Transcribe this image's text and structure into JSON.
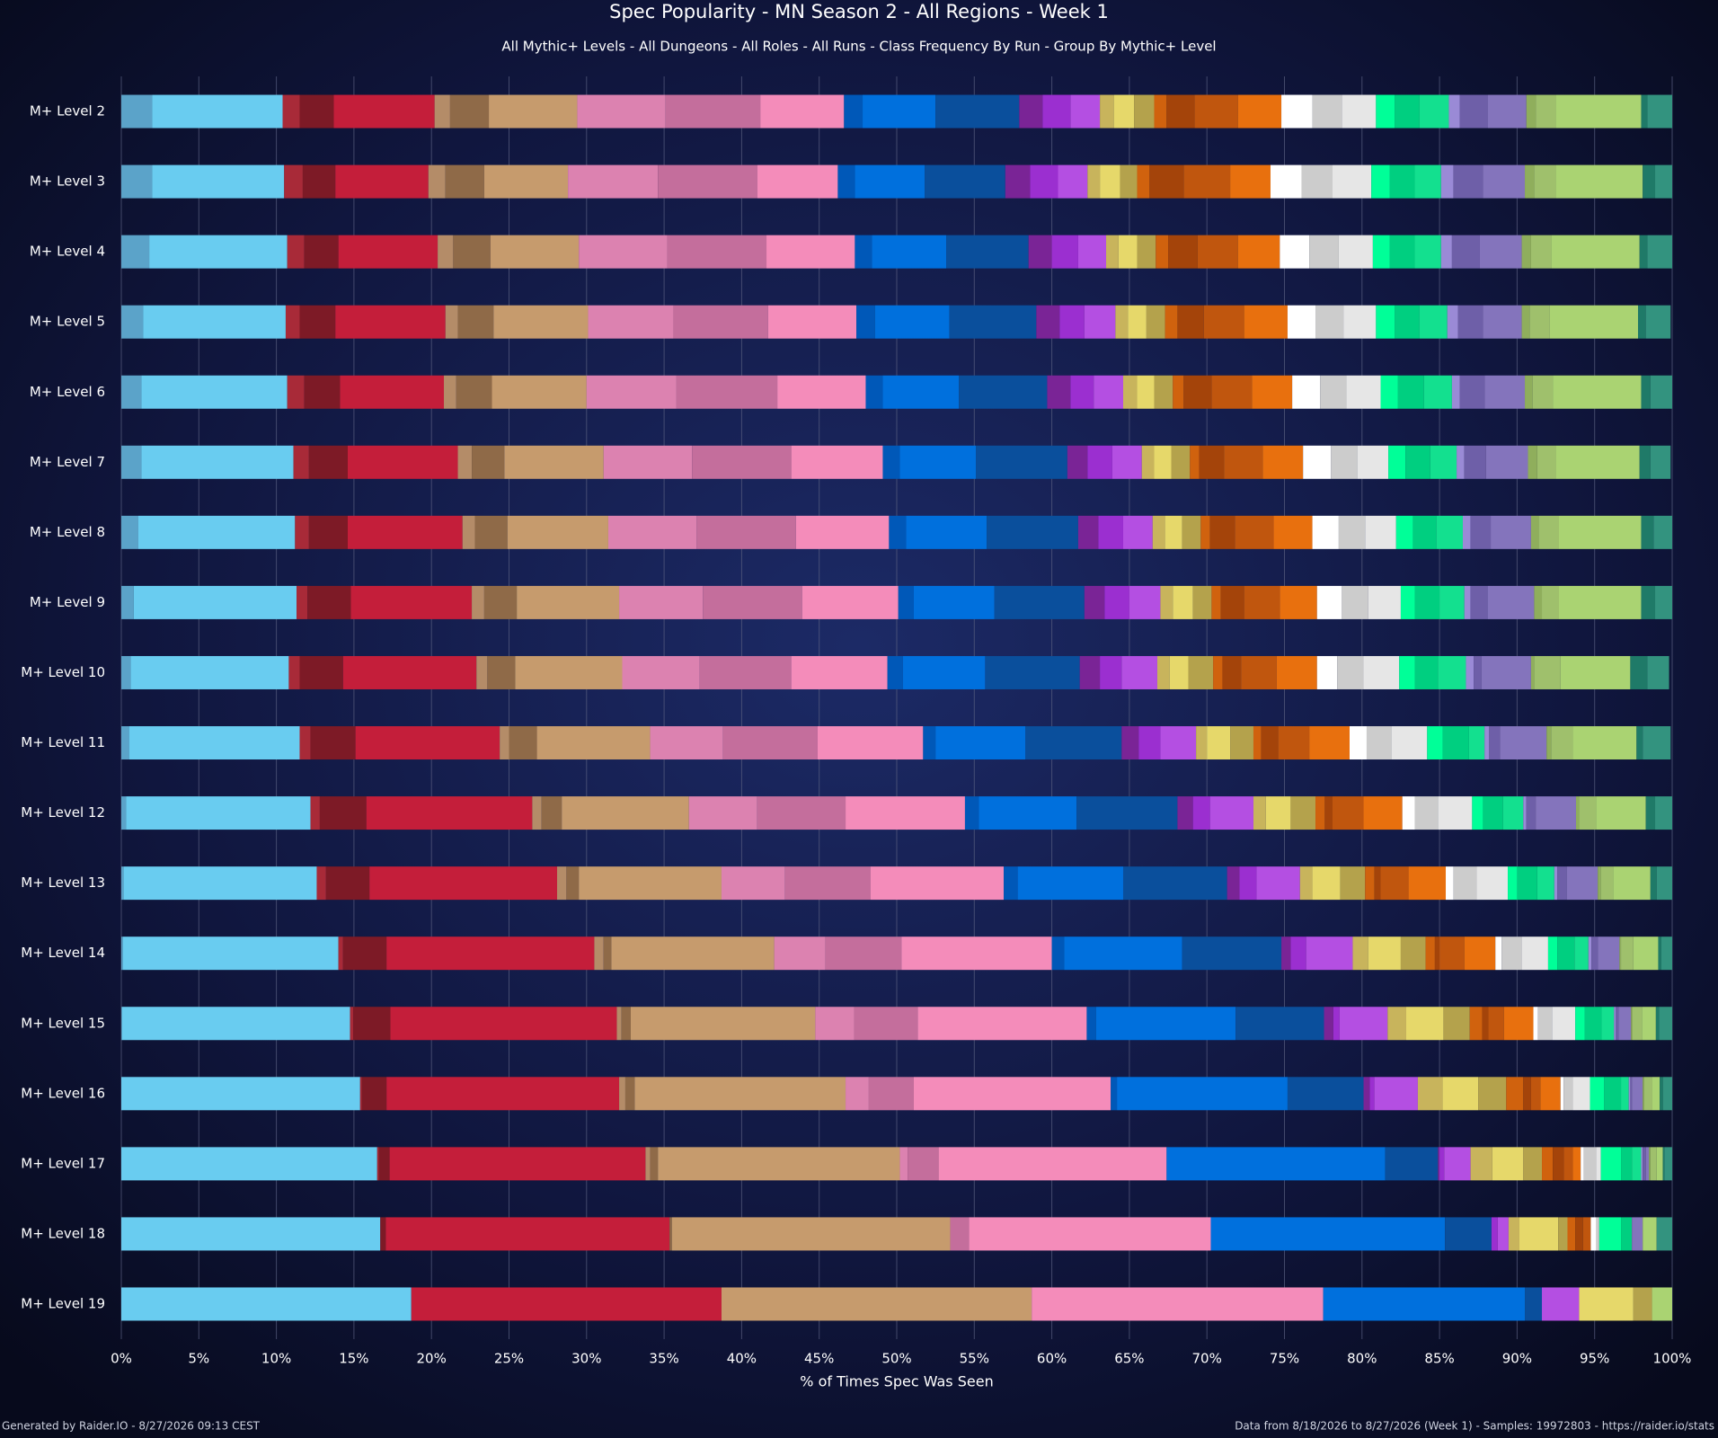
{
  "chart_data": {
    "type": "bar",
    "orientation": "horizontal",
    "stacked": true,
    "title": "Spec Popularity - MN Season 2 - All Regions - Week 1",
    "subtitle": "All Mythic+ Levels - All Dungeons - All Roles - All Runs - Class Frequency By Run - Group By Mythic+ Level",
    "x_label": "% of Times Spec Was Seen",
    "footer_left": "Generated by Raider.IO - 8/27/2026 09:13 CEST",
    "footer_right": "Data from 8/18/2026 to 8/27/2026 (Week 1) - Samples: 19972803 - https://raider.io/stats",
    "grid": true,
    "xlim": [
      0,
      100
    ],
    "xticks": [
      {
        "value": 0,
        "label": "0%"
      },
      {
        "value": 5,
        "label": "5%"
      },
      {
        "value": 10,
        "label": "10%"
      },
      {
        "value": 15,
        "label": "15%"
      },
      {
        "value": 20,
        "label": "20%"
      },
      {
        "value": 25,
        "label": "25%"
      },
      {
        "value": 30,
        "label": "30%"
      },
      {
        "value": 35,
        "label": "35%"
      },
      {
        "value": 40,
        "label": "40%"
      },
      {
        "value": 45,
        "label": "45%"
      },
      {
        "value": 50,
        "label": "50%"
      },
      {
        "value": 55,
        "label": "55%"
      },
      {
        "value": 60,
        "label": "60%"
      },
      {
        "value": 65,
        "label": "65%"
      },
      {
        "value": 70,
        "label": "70%"
      },
      {
        "value": 75,
        "label": "75%"
      },
      {
        "value": 80,
        "label": "80%"
      },
      {
        "value": 85,
        "label": "85%"
      },
      {
        "value": 90,
        "label": "90%"
      },
      {
        "value": 95,
        "label": "95%"
      },
      {
        "value": 100,
        "label": "100%"
      }
    ],
    "categories": [
      "M+ Level 2",
      "M+ Level 3",
      "M+ Level 4",
      "M+ Level 5",
      "M+ Level 6",
      "M+ Level 7",
      "M+ Level 8",
      "M+ Level 9",
      "M+ Level 10",
      "M+ Level 11",
      "M+ Level 12",
      "M+ Level 13",
      "M+ Level 14",
      "M+ Level 15",
      "M+ Level 16",
      "M+ Level 17",
      "M+ Level 18",
      "M+ Level 19"
    ],
    "series": [
      {
        "color": "#5ba3c9",
        "values": [
          2,
          2,
          1.8,
          1.4,
          1.3,
          1.3,
          1.1,
          0.8,
          0.6,
          0.5,
          0.3,
          0.15,
          0.1,
          0.05,
          0,
          0,
          0,
          0
        ]
      },
      {
        "color": "#69ccf0",
        "values": [
          8.4,
          8.5,
          8.9,
          9.2,
          9.4,
          9.8,
          10.1,
          10.5,
          10.2,
          11,
          11.9,
          12.45,
          13.9,
          14.7,
          15.4,
          16.5,
          16.7,
          18.7
        ]
      },
      {
        "color": "#a82a38",
        "values": [
          1.1,
          1.2,
          1.1,
          0.9,
          1.1,
          1,
          0.9,
          0.7,
          0.7,
          0.7,
          0.6,
          0.6,
          0.3,
          0.2,
          0.1,
          0.1,
          0,
          0
        ]
      },
      {
        "color": "#7d1a26",
        "values": [
          2.2,
          2.1,
          2.2,
          2.3,
          2.3,
          2.5,
          2.5,
          2.8,
          2.8,
          2.9,
          3,
          2.8,
          2.8,
          2.4,
          1.6,
          0.7,
          0.35,
          0
        ]
      },
      {
        "color": "#c41e3a",
        "values": [
          6.5,
          6,
          6.4,
          7.1,
          6.7,
          7.1,
          7.4,
          7.8,
          8.6,
          9.3,
          10.7,
          12.1,
          13.4,
          14.6,
          15,
          16.5,
          18.3,
          20
        ]
      },
      {
        "color": "#b48c68",
        "values": [
          1,
          1.1,
          1,
          0.8,
          0.8,
          0.9,
          0.8,
          0.8,
          0.7,
          0.6,
          0.6,
          0.6,
          0.6,
          0.3,
          0.4,
          0.3,
          0,
          0
        ]
      },
      {
        "color": "#8f6a48",
        "values": [
          2.5,
          2.5,
          2.4,
          2.3,
          2.3,
          2.1,
          2.1,
          2.1,
          1.8,
          1.8,
          1.3,
          0.8,
          0.5,
          0.6,
          0.6,
          0.5,
          0.15,
          0
        ]
      },
      {
        "color": "#c69b6d",
        "values": [
          5.7,
          5.4,
          5.7,
          6.1,
          6.1,
          6.4,
          6.5,
          6.6,
          6.9,
          7.3,
          8.2,
          9.2,
          10.5,
          11.9,
          13.6,
          15.6,
          17.95,
          20
        ]
      },
      {
        "color": "#dc82b0",
        "values": [
          5.7,
          5.8,
          5.7,
          5.5,
          5.8,
          5.7,
          5.7,
          5.4,
          5,
          4.7,
          4.4,
          4.1,
          3.3,
          2.5,
          1.5,
          0.5,
          0,
          0
        ]
      },
      {
        "color": "#c46e9c",
        "values": [
          6.1,
          6.4,
          6.4,
          6.1,
          6.5,
          6.4,
          6.4,
          6.4,
          5.9,
          6.1,
          5.7,
          5.5,
          4.9,
          4.1,
          2.9,
          2,
          1.2,
          0
        ]
      },
      {
        "color": "#f48cba",
        "values": [
          5.4,
          5.2,
          5.7,
          5.7,
          5.7,
          5.9,
          6,
          6.2,
          6.2,
          6.8,
          7.7,
          8.6,
          9.7,
          10.9,
          12.7,
          14.7,
          15.6,
          18.8
        ]
      },
      {
        "color": "#0058b8",
        "values": [
          1.2,
          1.1,
          1.1,
          1.2,
          1.1,
          1.1,
          1.1,
          1,
          1,
          0.8,
          0.9,
          0.9,
          0.8,
          0.6,
          0.4,
          0,
          0,
          0
        ]
      },
      {
        "color": "#0070dd",
        "values": [
          4.7,
          4.5,
          4.8,
          4.8,
          4.9,
          4.9,
          5.2,
          5.2,
          5.3,
          5.8,
          6.3,
          6.8,
          7.6,
          9,
          11,
          14.1,
          15.1,
          13
        ]
      },
      {
        "color": "#0a4f9c",
        "values": [
          5.4,
          5.2,
          5.3,
          5.6,
          5.7,
          5.9,
          5.9,
          5.8,
          6.1,
          6.2,
          6.5,
          6.7,
          6.4,
          5.7,
          4.9,
          3.4,
          3,
          1.1
        ]
      },
      {
        "color": "#7a2496",
        "values": [
          1.5,
          1.6,
          1.5,
          1.5,
          1.5,
          1.3,
          1.3,
          1.3,
          1.3,
          1.1,
          1,
          0.8,
          0.6,
          0.6,
          0.4,
          0.1,
          0,
          0
        ]
      },
      {
        "color": "#9b2fd0",
        "values": [
          1.8,
          1.8,
          1.7,
          1.6,
          1.5,
          1.6,
          1.6,
          1.6,
          1.4,
          1.4,
          1.1,
          1.1,
          1,
          0.4,
          0.3,
          0.3,
          0.4,
          0
        ]
      },
      {
        "color": "#b44fe2",
        "values": [
          1.9,
          1.9,
          1.8,
          2,
          1.9,
          1.9,
          1.9,
          2,
          2.3,
          2.3,
          2.8,
          2.8,
          3,
          3.1,
          2.8,
          1.7,
          0.7,
          2.4
        ]
      },
      {
        "color": "#c8b45c",
        "values": [
          0.9,
          0.8,
          0.8,
          0.8,
          0.9,
          0.8,
          0.8,
          0.8,
          0.8,
          0.7,
          0.8,
          0.8,
          1,
          1.2,
          1.6,
          1.4,
          0.7,
          0
        ]
      },
      {
        "color": "#e6d86a",
        "values": [
          1.3,
          1.3,
          1.2,
          1.2,
          1.1,
          1.1,
          1.1,
          1.3,
          1.2,
          1.5,
          1.6,
          1.8,
          2.1,
          2.4,
          2.3,
          2,
          2.5,
          3.5
        ]
      },
      {
        "color": "#b4a24c",
        "values": [
          1.3,
          1.1,
          1.2,
          1.2,
          1.2,
          1.2,
          1.2,
          1.2,
          1.6,
          1.5,
          1.6,
          1.6,
          1.6,
          1.7,
          1.8,
          1.2,
          0.6,
          1.2
        ]
      },
      {
        "color": "#d0620e",
        "values": [
          0.8,
          0.8,
          0.8,
          0.8,
          0.7,
          0.6,
          0.6,
          0.6,
          0.6,
          0.5,
          0.6,
          0.6,
          0.6,
          0.8,
          1.1,
          0.7,
          0.5,
          0
        ]
      },
      {
        "color": "#a4440a",
        "values": [
          1.8,
          2.2,
          1.9,
          1.7,
          1.8,
          1.6,
          1.6,
          1.5,
          1.2,
          1.1,
          0.5,
          0.4,
          0.3,
          0.4,
          0.5,
          0.7,
          0.5,
          0
        ]
      },
      {
        "color": "#c0560e",
        "values": [
          2.8,
          3,
          2.6,
          2.6,
          2.6,
          2.5,
          2.5,
          2.3,
          2.3,
          2,
          2,
          1.8,
          1.6,
          1,
          0.6,
          0.6,
          0.5,
          0
        ]
      },
      {
        "color": "#e8700e",
        "values": [
          2.8,
          2.6,
          2.7,
          2.8,
          2.6,
          2.6,
          2.5,
          2.4,
          2.6,
          2.6,
          2.5,
          2.4,
          2,
          1.9,
          1.3,
          0.5,
          0,
          0
        ]
      },
      {
        "color": "#ffffff",
        "values": [
          2,
          2,
          1.9,
          1.8,
          1.8,
          1.8,
          1.7,
          1.6,
          1.3,
          1.1,
          0.8,
          0.5,
          0.4,
          0.3,
          0.2,
          0.2,
          0.35,
          0
        ]
      },
      {
        "color": "#cccccc",
        "values": [
          1.9,
          2,
          1.9,
          1.8,
          1.7,
          1.7,
          1.7,
          1.7,
          1.7,
          1.6,
          1.5,
          1.5,
          1.3,
          0.9,
          0.6,
          0.8,
          0.2,
          0
        ]
      },
      {
        "color": "#e6e6e6",
        "values": [
          2.2,
          2.5,
          2.2,
          2.1,
          2.2,
          2,
          2,
          2.1,
          2.3,
          2.3,
          2.2,
          2,
          1.7,
          1.5,
          1.1,
          0.3,
          0,
          0
        ]
      },
      {
        "color": "#00ff98",
        "values": [
          1.2,
          1.2,
          1.1,
          1.2,
          1.1,
          1.1,
          1.1,
          0.9,
          1,
          1,
          0.7,
          0.6,
          0.6,
          0.6,
          0.9,
          1.3,
          1.4,
          0
        ]
      },
      {
        "color": "#00cf80",
        "values": [
          1.6,
          1.6,
          1.6,
          1.6,
          1.7,
          1.6,
          1.5,
          1.6,
          1.5,
          1.7,
          1.3,
          1.3,
          1.1,
          1.1,
          1.1,
          0.7,
          0.7,
          0
        ]
      },
      {
        "color": "#13e08f",
        "values": [
          1.9,
          1.7,
          1.7,
          1.8,
          1.8,
          1.7,
          1.7,
          1.6,
          1.8,
          1,
          1.3,
          1.1,
          0.9,
          0.8,
          0.5,
          0.6,
          0,
          0
        ]
      },
      {
        "color": "#9a8ad6",
        "values": [
          0.7,
          0.8,
          0.7,
          0.7,
          0.5,
          0.5,
          0.5,
          0.4,
          0.5,
          0.3,
          0.2,
          0.2,
          0.2,
          0.1,
          0.1,
          0.1,
          0,
          0
        ]
      },
      {
        "color": "#6e5fa8",
        "values": [
          1.8,
          1.9,
          1.8,
          1.6,
          1.6,
          1.4,
          1.3,
          1.1,
          0.5,
          0.7,
          0.6,
          0.6,
          0.4,
          0.2,
          0.1,
          0.2,
          0,
          0
        ]
      },
      {
        "color": "#8474bc",
        "values": [
          2.5,
          2.7,
          2.7,
          2.5,
          2.6,
          2.7,
          2.6,
          3,
          3.2,
          3,
          2.6,
          2,
          1.4,
          0.8,
          0.7,
          0.2,
          0.7,
          0
        ]
      },
      {
        "color": "#8fae5c",
        "values": [
          0.6,
          0.6,
          0.6,
          0.5,
          0.5,
          0.6,
          0.5,
          0.5,
          0.2,
          0.3,
          0.2,
          0.2,
          0.1,
          0.1,
          0.1,
          0.1,
          0,
          0
        ]
      },
      {
        "color": "#9fc06c",
        "values": [
          1.3,
          1.4,
          1.3,
          1.3,
          1.3,
          1.2,
          1.3,
          1.1,
          1.7,
          1.4,
          1.1,
          0.8,
          0.8,
          0.6,
          0.5,
          0.4,
          0,
          0
        ]
      },
      {
        "color": "#aad372",
        "values": [
          5.5,
          5.6,
          5.7,
          5.7,
          5.7,
          5.4,
          5.3,
          5.3,
          4.5,
          4.1,
          3.2,
          2.4,
          1.6,
          0.9,
          0.5,
          0.4,
          0.9,
          1.3
        ]
      },
      {
        "color": "#1f7a68",
        "values": [
          0.4,
          0.8,
          0.5,
          0.5,
          0.6,
          0.7,
          0.8,
          0.9,
          1.1,
          0.4,
          0.6,
          0.4,
          0.2,
          0.2,
          0.2,
          0.1,
          0,
          0
        ]
      },
      {
        "color": "#33937f",
        "values": [
          1.6,
          1.1,
          1.6,
          1.6,
          1.4,
          1.3,
          1.2,
          1.1,
          1.4,
          1.8,
          1.1,
          1,
          0.7,
          0.85,
          0.6,
          0.5,
          1,
          0
        ]
      }
    ]
  }
}
